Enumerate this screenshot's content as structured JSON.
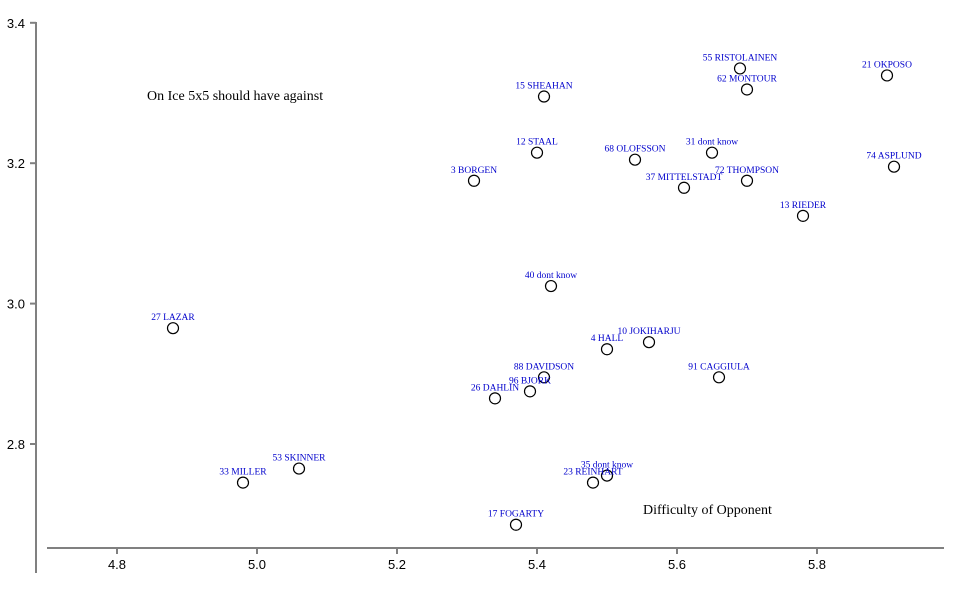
{
  "chart_data": {
    "type": "scatter",
    "title": "",
    "xlabel": "Difficulty of Opponent",
    "ylabel": "On Ice 5x5 should have against",
    "xlim": [
      4.7,
      5.98
    ],
    "ylim": [
      2.65,
      3.4
    ],
    "x_ticks": [
      "4.8",
      "5.0",
      "5.2",
      "5.4",
      "5.6",
      "5.8"
    ],
    "y_ticks": [
      "2.8",
      "3.0",
      "3.2",
      "3.4"
    ],
    "grid": false,
    "points": [
      {
        "label": "55 RISTOLAINEN",
        "x": 5.69,
        "y": 3.335
      },
      {
        "label": "21 OKPOSO",
        "x": 5.9,
        "y": 3.325
      },
      {
        "label": "62 MONTOUR",
        "x": 5.7,
        "y": 3.305
      },
      {
        "label": "15 SHEAHAN",
        "x": 5.41,
        "y": 3.295
      },
      {
        "label": "12 STAAL",
        "x": 5.4,
        "y": 3.215
      },
      {
        "label": "31 dont know",
        "x": 5.65,
        "y": 3.215
      },
      {
        "label": "68 OLOFSSON",
        "x": 5.54,
        "y": 3.205
      },
      {
        "label": "74 ASPLUND",
        "x": 5.91,
        "y": 3.195
      },
      {
        "label": "3 BORGEN",
        "x": 5.31,
        "y": 3.175
      },
      {
        "label": "72 THOMPSON",
        "x": 5.7,
        "y": 3.175
      },
      {
        "label": "37 MITTELSTADT",
        "x": 5.61,
        "y": 3.165
      },
      {
        "label": "13 RIEDER",
        "x": 5.78,
        "y": 3.125
      },
      {
        "label": "40 dont know",
        "x": 5.42,
        "y": 3.025
      },
      {
        "label": "27 LAZAR",
        "x": 4.88,
        "y": 2.965
      },
      {
        "label": "10 JOKIHARJU",
        "x": 5.56,
        "y": 2.945
      },
      {
        "label": "4 HALL",
        "x": 5.5,
        "y": 2.935
      },
      {
        "label": "91 CAGGIULA",
        "x": 5.66,
        "y": 2.895
      },
      {
        "label": "88 DAVIDSON",
        "x": 5.41,
        "y": 2.895
      },
      {
        "label": "96 BJORK",
        "x": 5.39,
        "y": 2.875
      },
      {
        "label": "26 DAHLIN",
        "x": 5.34,
        "y": 2.865
      },
      {
        "label": "53 SKINNER",
        "x": 5.06,
        "y": 2.765
      },
      {
        "label": "35 dont know",
        "x": 5.5,
        "y": 2.755
      },
      {
        "label": "33 MILLER",
        "x": 4.98,
        "y": 2.745
      },
      {
        "label": "23 REINHART",
        "x": 5.48,
        "y": 2.745
      },
      {
        "label": "17 FOGARTY",
        "x": 5.37,
        "y": 2.685
      }
    ]
  }
}
